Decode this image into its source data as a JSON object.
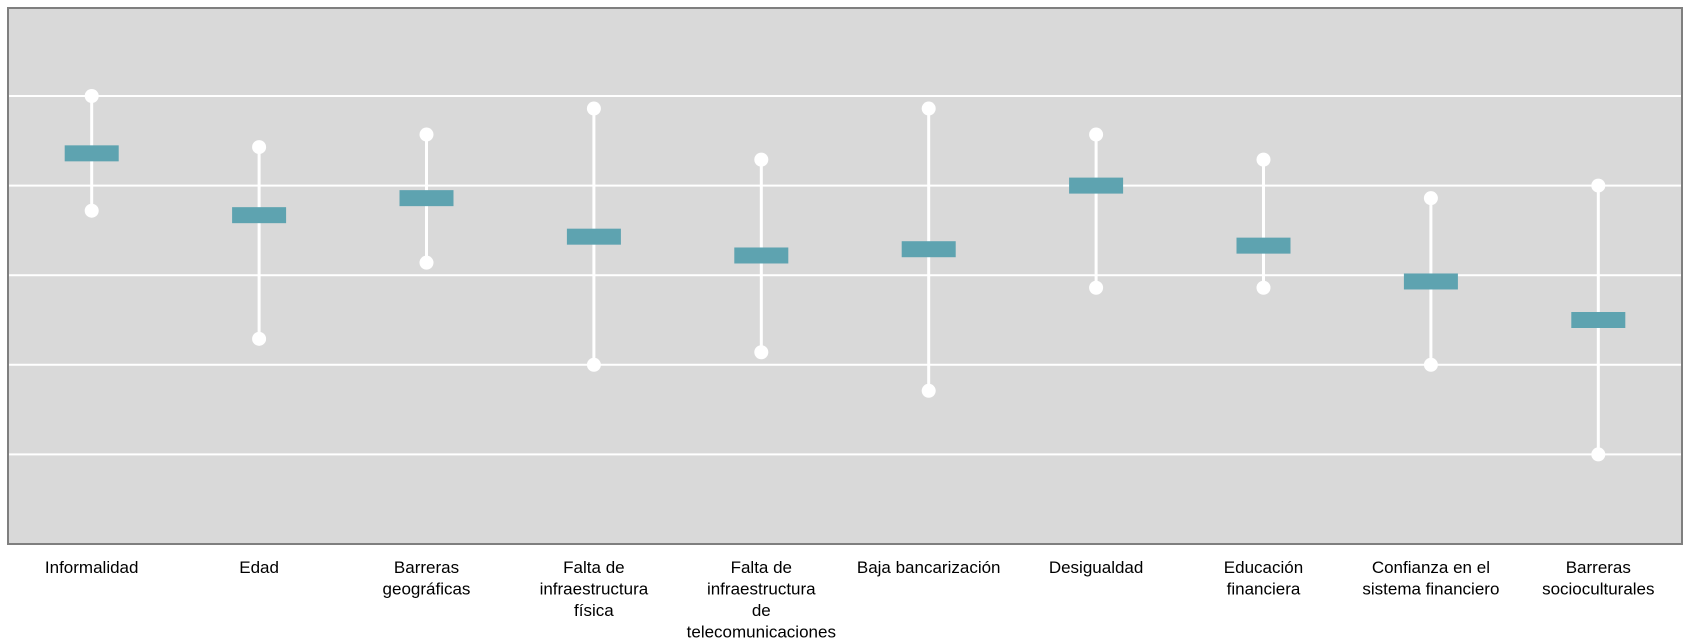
{
  "chart_data": {
    "type": "range",
    "title": "",
    "xlabel": "",
    "ylabel": "",
    "categories": [
      [
        "Informalidad"
      ],
      [
        "Edad"
      ],
      [
        "Barreras",
        "geográficas"
      ],
      [
        "Falta de",
        "infraestructura",
        "física"
      ],
      [
        "Falta de",
        "infraestructura",
        "de",
        "telecomunicaciones"
      ],
      [
        "Baja bancarización"
      ],
      [
        "Desigualdad"
      ],
      [
        "Educación",
        "financiera"
      ],
      [
        "Confianza en el",
        "sistema financiero"
      ],
      [
        "Barreras",
        "socioculturales"
      ]
    ],
    "series": [
      {
        "values": [
          {
            "high": 5.0,
            "low": 3.72,
            "mid": 4.36
          },
          {
            "high": 4.43,
            "low": 2.29,
            "mid": 3.67
          },
          {
            "high": 4.57,
            "low": 3.14,
            "mid": 3.86
          },
          {
            "high": 4.86,
            "low": 2.0,
            "mid": 3.43
          },
          {
            "high": 4.29,
            "low": 2.14,
            "mid": 3.22
          },
          {
            "high": 4.86,
            "low": 1.71,
            "mid": 3.29
          },
          {
            "high": 4.57,
            "low": 2.86,
            "mid": 4.0
          },
          {
            "high": 4.29,
            "low": 2.86,
            "mid": 3.33
          },
          {
            "high": 3.86,
            "low": 2.0,
            "mid": 2.93
          },
          {
            "high": 4.0,
            "low": 1.0,
            "mid": 2.5
          }
        ]
      }
    ],
    "ylim": [
      0,
      6
    ],
    "grid": true,
    "legend": "none",
    "colors": {
      "panel_bg": "#d9d9d9",
      "panel_border": "#7f7f7f",
      "grid": "#ffffff",
      "range_line": "#ffffff",
      "marker": "#ffffff",
      "mid_bar": "#5ea3b0"
    }
  }
}
